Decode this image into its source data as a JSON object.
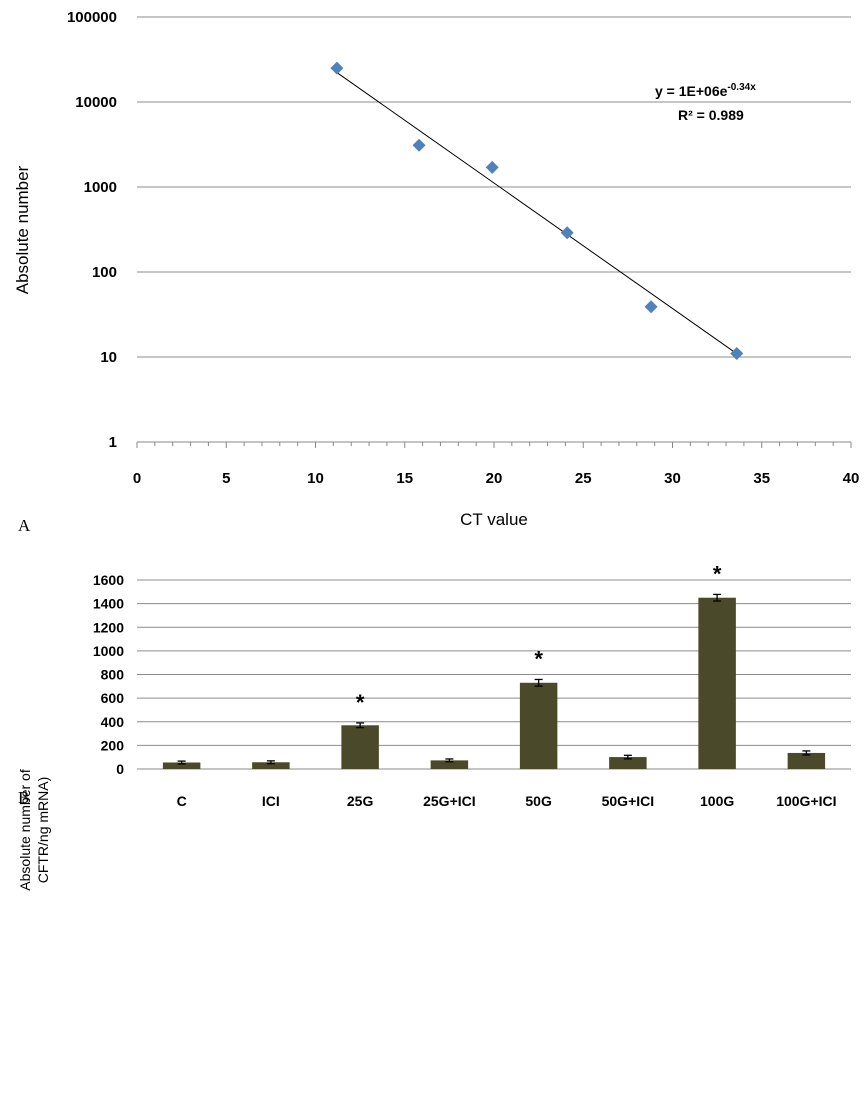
{
  "chart_data": [
    {
      "panel": "A",
      "type": "scatter",
      "xlabel": "CT value",
      "ylabel": "Absolute number",
      "xlim": [
        0,
        40
      ],
      "ylim": [
        1,
        100000
      ],
      "yscale": "log",
      "x_ticks": [
        "0",
        "5",
        "10",
        "15",
        "20",
        "25",
        "30",
        "35",
        "40"
      ],
      "y_ticks": [
        "1",
        "10",
        "100",
        "1000",
        "10000",
        "100000"
      ],
      "grid": "horizontal",
      "marker_color": "#4f81bd",
      "points": [
        {
          "x": 11.2,
          "y": 25000
        },
        {
          "x": 15.8,
          "y": 3100
        },
        {
          "x": 19.9,
          "y": 1700
        },
        {
          "x": 24.1,
          "y": 290
        },
        {
          "x": 28.8,
          "y": 39
        },
        {
          "x": 33.6,
          "y": 11
        }
      ],
      "trendline": {
        "type": "exponential",
        "a": 1000000,
        "b": -0.34,
        "x_range": [
          11.2,
          33.6
        ]
      },
      "equation": {
        "prefix": "y = 1E+06e",
        "exponent": "-0.34x"
      },
      "r_squared": "R² = 0.989"
    },
    {
      "panel": "B",
      "type": "bar",
      "ylabel": [
        "Absolute number of",
        "CFTR/ng mRNA)"
      ],
      "ylim": [
        0,
        1600
      ],
      "y_ticks": [
        "0",
        "200",
        "400",
        "600",
        "800",
        "1000",
        "1200",
        "1400",
        "1600"
      ],
      "grid": "horizontal",
      "bar_color": "#4a4a2b",
      "categories": [
        "C",
        "ICI",
        "25G",
        "25G+ICI",
        "50G",
        "50G+ICI",
        "100G",
        "100G+ICI"
      ],
      "values": [
        55,
        57,
        370,
        73,
        730,
        101,
        1450,
        136
      ],
      "errors": [
        12,
        12,
        20,
        12,
        28,
        15,
        28,
        17
      ],
      "significance": [
        "",
        "",
        "*",
        "",
        "*",
        "",
        "*",
        ""
      ]
    }
  ],
  "panel_labels": [
    "A",
    "B"
  ]
}
